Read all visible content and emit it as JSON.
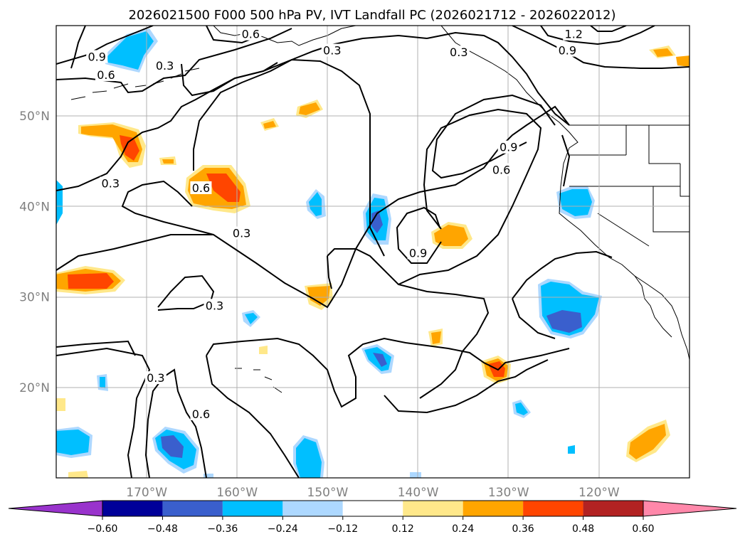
{
  "chart_data": {
    "type": "heatmap",
    "title": "2026021500 F000 500 hPa PV, IVT Landfall PC (2026021712 - 2026022012)",
    "x": {
      "ticks": [
        "170°W",
        "160°W",
        "150°W",
        "140°W",
        "130°W",
        "120°W"
      ],
      "tick_values": [
        -170,
        -160,
        -150,
        -140,
        -130,
        -120
      ],
      "range": [
        -180,
        -110
      ]
    },
    "y": {
      "ticks": [
        "20°N",
        "30°N",
        "40°N",
        "50°N"
      ],
      "tick_values": [
        20,
        30,
        40,
        50
      ],
      "range": [
        10,
        60
      ]
    },
    "grid": true,
    "colorbar": {
      "orientation": "horizontal",
      "extend": "both",
      "levels": [
        -0.6,
        -0.48,
        -0.36,
        -0.24,
        -0.12,
        0.12,
        0.24,
        0.36,
        0.48,
        0.6
      ],
      "tick_labels": [
        "−0.60",
        "−0.48",
        "−0.36",
        "−0.24",
        "−0.12",
        "0.12",
        "0.24",
        "0.36",
        "0.48",
        "0.60"
      ],
      "colors": [
        "#9933cc",
        "#000099",
        "#3a5fcd",
        "#00bfff",
        "#add8ff",
        "#ffffff",
        "#ffe88a",
        "#ffa500",
        "#ff4500",
        "#b22222",
        "#ff88aa"
      ]
    },
    "contour_levels": [
      0.3,
      0.6,
      0.9,
      1.2
    ],
    "contour_labels": [
      {
        "text": "0.6",
        "lon": -158.5,
        "lat": 59.0
      },
      {
        "text": "0.9",
        "lon": -175.5,
        "lat": 56.5
      },
      {
        "text": "0.6",
        "lon": -174.5,
        "lat": 54.5
      },
      {
        "text": "0.3",
        "lon": -168.0,
        "lat": 55.5
      },
      {
        "text": "0.3",
        "lon": -149.5,
        "lat": 57.2
      },
      {
        "text": "0.3",
        "lon": -135.5,
        "lat": 57.0
      },
      {
        "text": "1.2",
        "lon": -122.8,
        "lat": 59.0
      },
      {
        "text": "0.9",
        "lon": -123.5,
        "lat": 57.2
      },
      {
        "text": "0.3",
        "lon": -174.0,
        "lat": 42.5
      },
      {
        "text": "0.6",
        "lon": -164.0,
        "lat": 42.0
      },
      {
        "text": "0.3",
        "lon": -159.5,
        "lat": 37.0
      },
      {
        "text": "0.9",
        "lon": -130.0,
        "lat": 46.5
      },
      {
        "text": "0.6",
        "lon": -130.8,
        "lat": 44.0
      },
      {
        "text": "0.9",
        "lon": -140.0,
        "lat": 34.8
      },
      {
        "text": "0.3",
        "lon": -162.5,
        "lat": 29.0
      },
      {
        "text": "0.3",
        "lon": -169.0,
        "lat": 21.0
      },
      {
        "text": "0.6",
        "lon": -164.0,
        "lat": 17.0
      }
    ]
  }
}
